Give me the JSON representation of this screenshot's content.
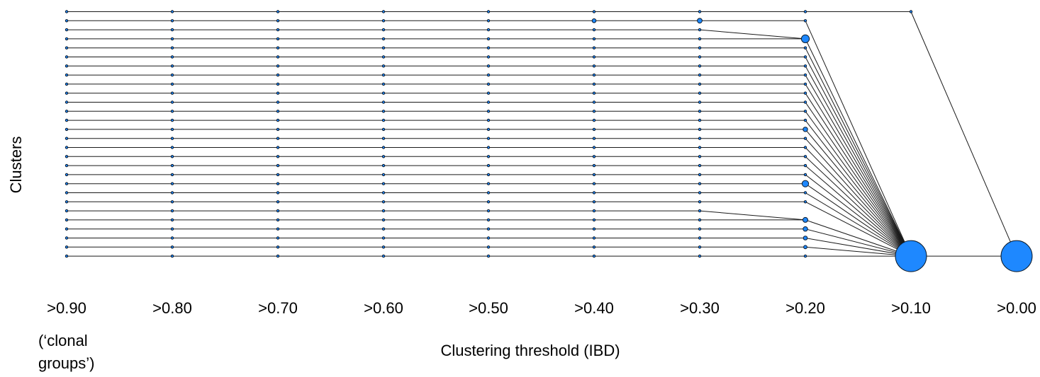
{
  "diagram": {
    "y_axis_label": "Clusters",
    "x_axis_label": "Clustering threshold (IBD)",
    "x_note_lines": [
      "(‘clonal",
      "groups’)"
    ],
    "thresholds": [
      ">0.90",
      ">0.80",
      ">0.70",
      ">0.60",
      ">0.50",
      ">0.40",
      ">0.30",
      ">0.20",
      ">0.10",
      ">0.00"
    ],
    "rows": 28,
    "colors": {
      "node_fill": "#1e88ff",
      "node_stroke": "#0d1b2a",
      "edge": "#1a1a1a"
    }
  }
}
